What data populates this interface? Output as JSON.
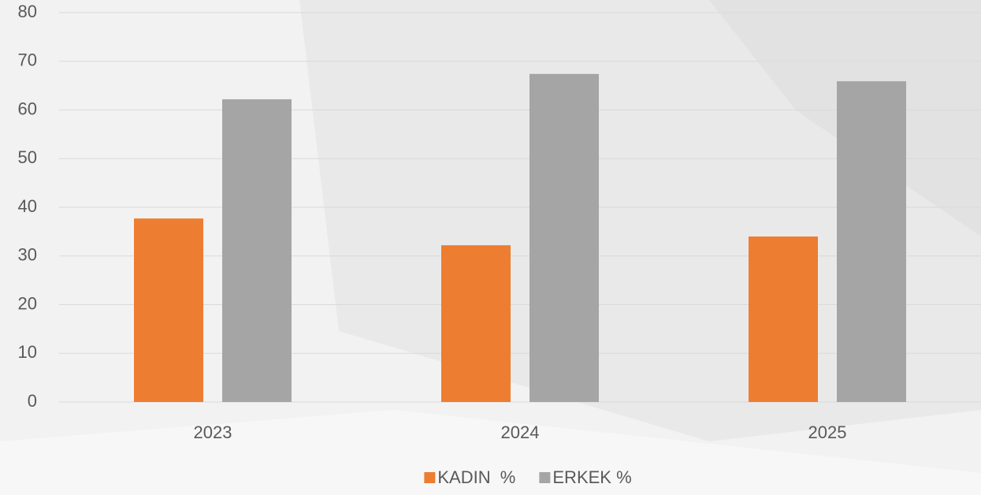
{
  "chart_data": {
    "type": "bar",
    "categories": [
      "2023",
      "2024",
      "2025"
    ],
    "series": [
      {
        "name": "KADIN  %",
        "color": "#ed7d31",
        "values": [
          37.7,
          32.2,
          34.0
        ]
      },
      {
        "name": "ERKEK %",
        "color": "#a5a5a5",
        "values": [
          62.2,
          67.4,
          65.9
        ]
      }
    ],
    "ylim": [
      0,
      80
    ],
    "yticks": [
      0,
      10,
      20,
      30,
      40,
      50,
      60,
      70,
      80
    ],
    "grid": true,
    "legend": "bottom"
  }
}
